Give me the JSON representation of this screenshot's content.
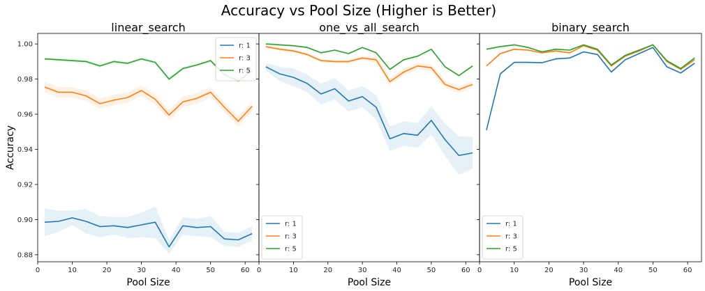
{
  "suptitle": "Accuracy vs Pool Size (Higher is Better)",
  "ylabel": "Accuracy",
  "colors": {
    "r1": "#1f77b4",
    "r3": "#ff7f0e",
    "r5": "#2ca02c"
  },
  "chart_data": [
    {
      "type": "line",
      "title": "linear_search",
      "xlabel": "Pool Size",
      "ylabel": "Accuracy",
      "xlim": [
        0,
        64
      ],
      "ylim": [
        0.876,
        1.006
      ],
      "xticks": [
        0,
        10,
        20,
        30,
        40,
        50,
        60
      ],
      "yticks": [
        0.88,
        0.9,
        0.92,
        0.94,
        0.96,
        0.98,
        1.0
      ],
      "ytick_labels": [
        "0.88",
        "0.90",
        "0.92",
        "0.94",
        "0.96",
        "0.98",
        "1.00"
      ],
      "legend_position": "top-right",
      "x": [
        2,
        6,
        10,
        14,
        18,
        22,
        26,
        30,
        34,
        38,
        42,
        46,
        50,
        54,
        58,
        62
      ],
      "series": [
        {
          "name": "r: 1",
          "color": "#1f77b4",
          "values": [
            0.8985,
            0.899,
            0.901,
            0.899,
            0.896,
            0.8965,
            0.8955,
            0.897,
            0.8985,
            0.8845,
            0.8965,
            0.8955,
            0.896,
            0.889,
            0.8885,
            0.892
          ],
          "band": [
            0.008,
            0.006,
            0.004,
            0.007,
            0.006,
            0.005,
            0.006,
            0.007,
            0.009,
            0.004,
            0.005,
            0.005,
            0.006,
            0.004,
            0.004,
            0.004
          ]
        },
        {
          "name": "r: 3",
          "color": "#ff7f0e",
          "values": [
            0.9755,
            0.9725,
            0.9725,
            0.9705,
            0.966,
            0.968,
            0.9695,
            0.9735,
            0.9685,
            0.9595,
            0.967,
            0.969,
            0.9725,
            0.964,
            0.956,
            0.9645
          ],
          "band": [
            0.003,
            0.003,
            0.003,
            0.003,
            0.003,
            0.003,
            0.003,
            0.003,
            0.003,
            0.003,
            0.003,
            0.003,
            0.003,
            0.003,
            0.003,
            0.003
          ]
        },
        {
          "name": "r: 5",
          "color": "#2ca02c",
          "values": [
            0.9915,
            0.991,
            0.9905,
            0.99,
            0.9875,
            0.99,
            0.989,
            0.9915,
            0.9895,
            0.98,
            0.986,
            0.988,
            0.9905,
            0.9825,
            0.979,
            0.9845
          ],
          "band": [
            0.001,
            0.001,
            0.001,
            0.001,
            0.001,
            0.001,
            0.001,
            0.001,
            0.001,
            0.001,
            0.001,
            0.001,
            0.001,
            0.001,
            0.001,
            0.001
          ]
        }
      ]
    },
    {
      "type": "line",
      "title": "one_vs_all_search",
      "xlabel": "Pool Size",
      "xlim": [
        0,
        64
      ],
      "ylim": [
        0.876,
        1.006
      ],
      "xticks": [
        0,
        10,
        20,
        30,
        40,
        50,
        60
      ],
      "legend_position": "bottom-left",
      "x": [
        2,
        6,
        10,
        14,
        18,
        22,
        26,
        30,
        34,
        38,
        42,
        46,
        50,
        54,
        58,
        62
      ],
      "series": [
        {
          "name": "r: 1",
          "color": "#1f77b4",
          "values": [
            0.987,
            0.983,
            0.981,
            0.9775,
            0.9715,
            0.9745,
            0.9675,
            0.97,
            0.964,
            0.946,
            0.949,
            0.948,
            0.9565,
            0.9455,
            0.9365,
            0.938
          ],
          "band": [
            0.002,
            0.004,
            0.005,
            0.005,
            0.006,
            0.006,
            0.006,
            0.006,
            0.007,
            0.007,
            0.007,
            0.007,
            0.008,
            0.009,
            0.011,
            0.009
          ]
        },
        {
          "name": "r: 3",
          "color": "#ff7f0e",
          "values": [
            0.9985,
            0.997,
            0.996,
            0.994,
            0.9905,
            0.99,
            0.99,
            0.992,
            0.991,
            0.9785,
            0.984,
            0.9875,
            0.9865,
            0.977,
            0.974,
            0.977
          ],
          "band": [
            0.001,
            0.001,
            0.001,
            0.001,
            0.001,
            0.001,
            0.001,
            0.001,
            0.002,
            0.002,
            0.002,
            0.002,
            0.002,
            0.002,
            0.002,
            0.002
          ]
        },
        {
          "name": "r: 5",
          "color": "#2ca02c",
          "values": [
            1.0,
            0.9995,
            0.999,
            0.998,
            0.995,
            0.9965,
            0.9945,
            0.998,
            0.995,
            0.9855,
            0.991,
            0.993,
            0.997,
            0.987,
            0.982,
            0.9875
          ],
          "band": [
            0.0005,
            0.0005,
            0.0005,
            0.0005,
            0.0005,
            0.0005,
            0.0005,
            0.0005,
            0.0005,
            0.0005,
            0.0005,
            0.0005,
            0.0005,
            0.0005,
            0.0005,
            0.0005
          ]
        }
      ]
    },
    {
      "type": "line",
      "title": "binary_search",
      "xlabel": "Pool Size",
      "xlim": [
        0,
        64
      ],
      "ylim": [
        0.876,
        1.006
      ],
      "xticks": [
        0,
        10,
        20,
        30,
        40,
        50,
        60
      ],
      "legend_position": "bottom-left",
      "x": [
        2,
        6,
        10,
        14,
        18,
        22,
        26,
        30,
        34,
        38,
        42,
        46,
        50,
        54,
        58,
        62
      ],
      "series": [
        {
          "name": "r: 1",
          "color": "#1f77b4",
          "values": [
            0.951,
            0.983,
            0.9895,
            0.9895,
            0.9893,
            0.9915,
            0.992,
            0.9955,
            0.994,
            0.984,
            0.991,
            0.9945,
            0.998,
            0.987,
            0.9835,
            0.989
          ],
          "band": [
            0.0005,
            0.0005,
            0.0005,
            0.0005,
            0.0005,
            0.0005,
            0.0005,
            0.0005,
            0.0005,
            0.0005,
            0.0005,
            0.0005,
            0.0005,
            0.0005,
            0.0005,
            0.0005
          ]
        },
        {
          "name": "r: 3",
          "color": "#ff7f0e",
          "values": [
            0.9875,
            0.9945,
            0.997,
            0.9965,
            0.995,
            0.996,
            0.995,
            0.999,
            0.9965,
            0.9875,
            0.993,
            0.996,
            0.9995,
            0.99,
            0.9855,
            0.991
          ],
          "band": [
            0.0005,
            0.0005,
            0.0005,
            0.0005,
            0.0005,
            0.0005,
            0.0005,
            0.0005,
            0.0005,
            0.0005,
            0.0005,
            0.0005,
            0.0005,
            0.0005,
            0.0005,
            0.0005
          ]
        },
        {
          "name": "r: 5",
          "color": "#2ca02c",
          "values": [
            0.997,
            0.9985,
            0.9995,
            0.998,
            0.9955,
            0.997,
            0.9965,
            0.9995,
            0.997,
            0.988,
            0.9935,
            0.9965,
            0.9995,
            0.9905,
            0.986,
            0.992
          ],
          "band": [
            0.0005,
            0.0005,
            0.0005,
            0.0005,
            0.0005,
            0.0005,
            0.0005,
            0.0005,
            0.0005,
            0.0005,
            0.0005,
            0.0005,
            0.0005,
            0.0005,
            0.0005,
            0.0005
          ]
        }
      ]
    }
  ]
}
